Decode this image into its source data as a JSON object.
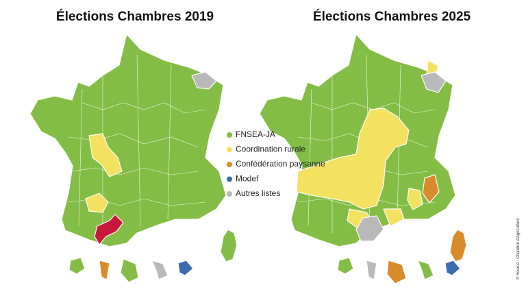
{
  "maps": [
    {
      "title": "Élections Chambres 2019"
    },
    {
      "title": "Élections Chambres 2025"
    }
  ],
  "legend": [
    {
      "label": "FNSEA-JA",
      "color": "#84bd45"
    },
    {
      "label": "Coordination rurale",
      "color": "#f3e160"
    },
    {
      "label": "Confédération paysanne",
      "color": "#d98b2b"
    },
    {
      "label": "Modef",
      "color": "#3b6cb0"
    },
    {
      "label": "Autres listes",
      "color": "#b9b9b9"
    }
  ],
  "source": "© Source : Chambre d'Agriculture"
}
